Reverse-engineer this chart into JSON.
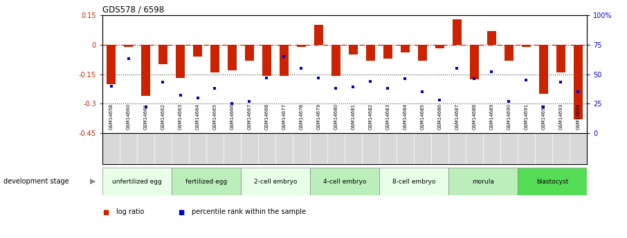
{
  "title": "GDS578 / 6598",
  "samples": [
    "GSM14658",
    "GSM14660",
    "GSM14661",
    "GSM14662",
    "GSM14663",
    "GSM14664",
    "GSM14665",
    "GSM14666",
    "GSM14667",
    "GSM14668",
    "GSM14677",
    "GSM14678",
    "GSM14679",
    "GSM14680",
    "GSM14681",
    "GSM14682",
    "GSM14683",
    "GSM14684",
    "GSM14685",
    "GSM14686",
    "GSM14687",
    "GSM14688",
    "GSM14689",
    "GSM14690",
    "GSM14691",
    "GSM14692",
    "GSM14693",
    "GSM14694"
  ],
  "log_ratio": [
    -0.2,
    -0.01,
    -0.26,
    -0.1,
    -0.17,
    -0.06,
    -0.14,
    -0.13,
    -0.08,
    -0.16,
    -0.16,
    -0.01,
    0.1,
    -0.16,
    -0.05,
    -0.08,
    -0.07,
    -0.04,
    -0.08,
    -0.02,
    0.13,
    -0.175,
    0.07,
    -0.08,
    -0.01,
    -0.25,
    -0.14,
    -0.38
  ],
  "percentile": [
    40,
    63,
    22,
    43,
    32,
    30,
    38,
    25,
    27,
    47,
    65,
    55,
    47,
    38,
    39,
    44,
    38,
    46,
    35,
    28,
    55,
    46,
    52,
    27,
    45,
    22,
    43,
    35
  ],
  "bar_color": "#cc2200",
  "dot_color": "#0000cc",
  "zero_line_color": "#cc2200",
  "ylim_left": [
    -0.45,
    0.15
  ],
  "ylim_right": [
    0,
    100
  ],
  "stages": [
    {
      "label": "unfertilized egg",
      "start": 0,
      "end": 4,
      "color": "#e8ffe8"
    },
    {
      "label": "fertilized egg",
      "start": 4,
      "end": 8,
      "color": "#bbeebb"
    },
    {
      "label": "2-cell embryo",
      "start": 8,
      "end": 12,
      "color": "#e8ffe8"
    },
    {
      "label": "4-cell embryo",
      "start": 12,
      "end": 16,
      "color": "#bbeebb"
    },
    {
      "label": "8-cell embryo",
      "start": 16,
      "end": 20,
      "color": "#e8ffe8"
    },
    {
      "label": "morula",
      "start": 20,
      "end": 24,
      "color": "#bbeebb"
    },
    {
      "label": "blastocyst",
      "start": 24,
      "end": 28,
      "color": "#55dd55"
    }
  ],
  "legend_items": [
    {
      "label": "log ratio",
      "color": "#cc2200"
    },
    {
      "label": "percentile rank within the sample",
      "color": "#0000cc"
    }
  ],
  "dev_stage_label": "development stage"
}
